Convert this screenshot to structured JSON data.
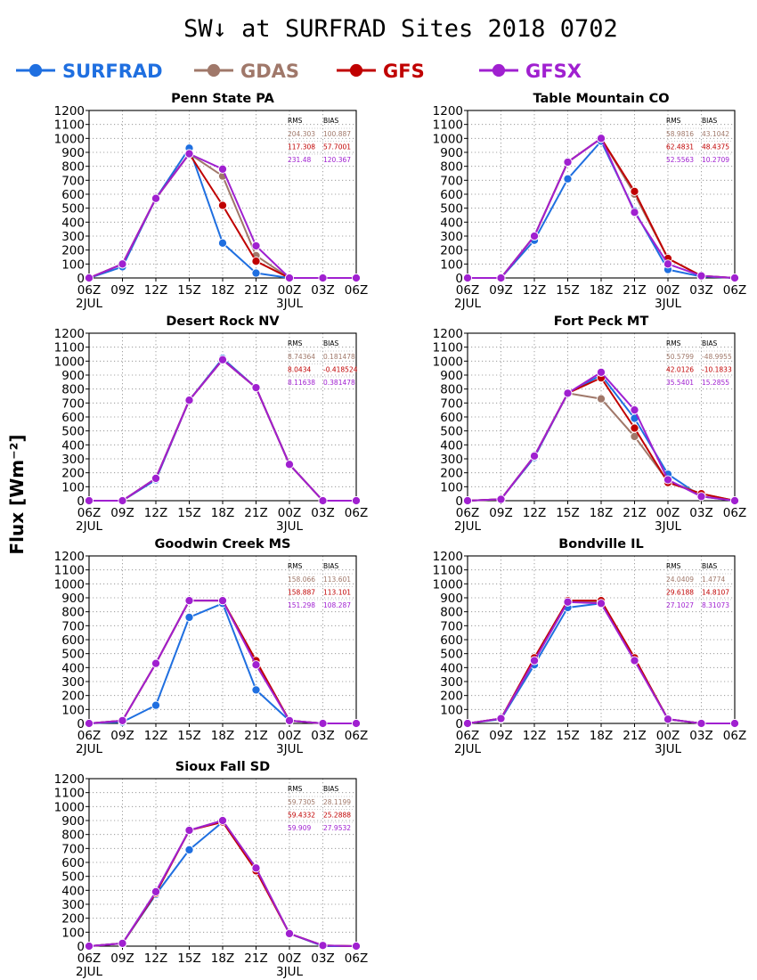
{
  "figure": {
    "title": "SW↓ at SURFRAD Sites    2018 0702",
    "ylabel": "Flux [Wm⁻²]",
    "legend": [
      {
        "name": "SURFRAD",
        "color": "#1f6fe0"
      },
      {
        "name": "GDAS",
        "color": "#a0786a"
      },
      {
        "name": "GFS",
        "color": "#c00000"
      },
      {
        "name": "GFSX",
        "color": "#a020d0"
      }
    ]
  },
  "chart_data": [
    {
      "type": "line",
      "title": "Penn State PA",
      "x": [
        "06Z",
        "09Z",
        "12Z",
        "15Z",
        "18Z",
        "21Z",
        "00Z",
        "03Z",
        "06Z"
      ],
      "date_labels": {
        "0": "2JUL",
        "6": "3JUL"
      },
      "ylim": [
        0,
        1200
      ],
      "yticks": [
        0,
        100,
        200,
        300,
        400,
        500,
        600,
        700,
        800,
        900,
        1000,
        1100,
        1200
      ],
      "grid": true,
      "stats_header": [
        "RMS",
        "BIAS"
      ],
      "stats": [
        [
          "204.303",
          "100.887"
        ],
        [
          "117.308",
          "57.7001"
        ],
        [
          "231.48",
          "120.367"
        ]
      ],
      "series": [
        {
          "name": "SURFRAD",
          "values": [
            0,
            80,
            570,
            930,
            250,
            35,
            0,
            null,
            null
          ]
        },
        {
          "name": "GDAS",
          "values": [
            0,
            100,
            570,
            890,
            730,
            160,
            0,
            0,
            0
          ]
        },
        {
          "name": "GFS",
          "values": [
            0,
            100,
            570,
            890,
            520,
            120,
            0,
            0,
            0
          ]
        },
        {
          "name": "GFSX",
          "values": [
            0,
            100,
            570,
            890,
            780,
            230,
            0,
            0,
            0
          ]
        }
      ]
    },
    {
      "type": "line",
      "title": "Table Mountain CO",
      "x": [
        "06Z",
        "09Z",
        "12Z",
        "15Z",
        "18Z",
        "21Z",
        "00Z",
        "03Z",
        "06Z"
      ],
      "date_labels": {
        "0": "2JUL",
        "6": "3JUL"
      },
      "ylim": [
        0,
        1200
      ],
      "yticks": [
        0,
        100,
        200,
        300,
        400,
        500,
        600,
        700,
        800,
        900,
        1000,
        1100,
        1200
      ],
      "grid": true,
      "stats_header": [
        "RMS",
        "BIAS"
      ],
      "stats": [
        [
          "58.9816",
          "43.1042"
        ],
        [
          "62.4831",
          "48.4375"
        ],
        [
          "52.5563",
          "10.2709"
        ]
      ],
      "series": [
        {
          "name": "SURFRAD",
          "values": [
            0,
            0,
            270,
            710,
            980,
            480,
            60,
            10,
            0
          ]
        },
        {
          "name": "GDAS",
          "values": [
            0,
            0,
            300,
            830,
            1000,
            600,
            140,
            15,
            0
          ]
        },
        {
          "name": "GFS",
          "values": [
            0,
            0,
            300,
            830,
            1000,
            620,
            140,
            15,
            0
          ]
        },
        {
          "name": "GFSX",
          "values": [
            0,
            0,
            300,
            830,
            1000,
            470,
            100,
            15,
            0
          ]
        }
      ]
    },
    {
      "type": "line",
      "title": "Desert Rock NV",
      "x": [
        "06Z",
        "09Z",
        "12Z",
        "15Z",
        "18Z",
        "21Z",
        "00Z",
        "03Z",
        "06Z"
      ],
      "date_labels": {
        "0": "2JUL",
        "6": "3JUL"
      },
      "ylim": [
        0,
        1200
      ],
      "yticks": [
        0,
        100,
        200,
        300,
        400,
        500,
        600,
        700,
        800,
        900,
        1000,
        1100,
        1200
      ],
      "grid": true,
      "stats_header": [
        "RMS",
        "BIAS"
      ],
      "stats": [
        [
          "8.74364",
          "0.181478"
        ],
        [
          "8.0434",
          "-0.418524"
        ],
        [
          "8.11638",
          "0.381478"
        ]
      ],
      "series": [
        {
          "name": "SURFRAD",
          "values": [
            0,
            0,
            150,
            720,
            1020,
            810,
            260,
            0,
            null
          ]
        },
        {
          "name": "GDAS",
          "values": [
            0,
            0,
            160,
            720,
            1010,
            810,
            260,
            0,
            0
          ]
        },
        {
          "name": "GFS",
          "values": [
            0,
            0,
            160,
            720,
            1010,
            810,
            260,
            0,
            0
          ]
        },
        {
          "name": "GFSX",
          "values": [
            0,
            0,
            160,
            720,
            1010,
            810,
            260,
            0,
            0
          ]
        }
      ]
    },
    {
      "type": "line",
      "title": "Fort Peck MT",
      "x": [
        "06Z",
        "09Z",
        "12Z",
        "15Z",
        "18Z",
        "21Z",
        "00Z",
        "03Z",
        "06Z"
      ],
      "date_labels": {
        "0": "2JUL",
        "6": "3JUL"
      },
      "ylim": [
        0,
        1200
      ],
      "yticks": [
        0,
        100,
        200,
        300,
        400,
        500,
        600,
        700,
        800,
        900,
        1000,
        1100,
        1200
      ],
      "grid": true,
      "stats_header": [
        "RMS",
        "BIAS"
      ],
      "stats": [
        [
          "50.5799",
          "-48.9955"
        ],
        [
          "42.0126",
          "-10.1833"
        ],
        [
          "35.5401",
          "15.2855"
        ]
      ],
      "series": [
        {
          "name": "SURFRAD",
          "values": [
            0,
            10,
            310,
            770,
            900,
            590,
            190,
            30,
            0
          ]
        },
        {
          "name": "GDAS",
          "values": [
            0,
            10,
            320,
            770,
            730,
            460,
            140,
            50,
            0
          ]
        },
        {
          "name": "GFS",
          "values": [
            0,
            10,
            320,
            770,
            880,
            520,
            130,
            50,
            0
          ]
        },
        {
          "name": "GFSX",
          "values": [
            0,
            10,
            320,
            770,
            920,
            650,
            150,
            30,
            0
          ]
        }
      ]
    },
    {
      "type": "line",
      "title": "Goodwin Creek MS",
      "x": [
        "06Z",
        "09Z",
        "12Z",
        "15Z",
        "18Z",
        "21Z",
        "00Z",
        "03Z",
        "06Z"
      ],
      "date_labels": {
        "0": "2JUL",
        "6": "3JUL"
      },
      "ylim": [
        0,
        1200
      ],
      "yticks": [
        0,
        100,
        200,
        300,
        400,
        500,
        600,
        700,
        800,
        900,
        1000,
        1100,
        1200
      ],
      "grid": true,
      "stats_header": [
        "RMS",
        "BIAS"
      ],
      "stats": [
        [
          "158.066",
          "113.601"
        ],
        [
          "158.887",
          "113.101"
        ],
        [
          "151.298",
          "108.287"
        ]
      ],
      "series": [
        {
          "name": "SURFRAD",
          "values": [
            0,
            10,
            130,
            760,
            860,
            240,
            20,
            0,
            null
          ]
        },
        {
          "name": "GDAS",
          "values": [
            0,
            20,
            430,
            880,
            880,
            440,
            20,
            0,
            0
          ]
        },
        {
          "name": "GFS",
          "values": [
            0,
            20,
            430,
            880,
            880,
            450,
            20,
            0,
            0
          ]
        },
        {
          "name": "GFSX",
          "values": [
            0,
            20,
            430,
            880,
            880,
            420,
            20,
            0,
            0
          ]
        }
      ]
    },
    {
      "type": "line",
      "title": "Bondville IL",
      "x": [
        "06Z",
        "09Z",
        "12Z",
        "15Z",
        "18Z",
        "21Z",
        "00Z",
        "03Z",
        "06Z"
      ],
      "date_labels": {
        "0": "2JUL",
        "6": "3JUL"
      },
      "ylim": [
        0,
        1200
      ],
      "yticks": [
        0,
        100,
        200,
        300,
        400,
        500,
        600,
        700,
        800,
        900,
        1000,
        1100,
        1200
      ],
      "grid": true,
      "stats_header": [
        "RMS",
        "BIAS"
      ],
      "stats": [
        [
          "24.0409",
          "1.4774"
        ],
        [
          "29.6188",
          "14.8107"
        ],
        [
          "27.1027",
          "8.31073"
        ]
      ],
      "series": [
        {
          "name": "SURFRAD",
          "values": [
            0,
            30,
            420,
            830,
            860,
            460,
            30,
            0,
            0
          ]
        },
        {
          "name": "GDAS",
          "values": [
            0,
            35,
            450,
            870,
            870,
            470,
            30,
            0,
            0
          ]
        },
        {
          "name": "GFS",
          "values": [
            0,
            35,
            470,
            880,
            880,
            470,
            30,
            0,
            0
          ]
        },
        {
          "name": "GFSX",
          "values": [
            0,
            35,
            450,
            870,
            860,
            450,
            30,
            0,
            0
          ]
        }
      ]
    },
    {
      "type": "line",
      "title": "Sioux Fall SD",
      "x": [
        "06Z",
        "09Z",
        "12Z",
        "15Z",
        "18Z",
        "21Z",
        "00Z",
        "03Z",
        "06Z"
      ],
      "date_labels": {
        "0": "2JUL",
        "6": "3JUL"
      },
      "ylim": [
        0,
        1200
      ],
      "yticks": [
        0,
        100,
        200,
        300,
        400,
        500,
        600,
        700,
        800,
        900,
        1000,
        1100,
        1200
      ],
      "grid": true,
      "stats_header": [
        "RMS",
        "BIAS"
      ],
      "stats": [
        [
          "59.7305",
          "28.1199"
        ],
        [
          "59.4332",
          "25.2888"
        ],
        [
          "59.909",
          "27.9532"
        ]
      ],
      "series": [
        {
          "name": "SURFRAD",
          "values": [
            0,
            20,
            370,
            690,
            890,
            550,
            90,
            0,
            0
          ]
        },
        {
          "name": "GDAS",
          "values": [
            0,
            20,
            380,
            830,
            900,
            560,
            90,
            5,
            0
          ]
        },
        {
          "name": "GFS",
          "values": [
            0,
            20,
            380,
            830,
            890,
            540,
            90,
            5,
            0
          ]
        },
        {
          "name": "GFSX",
          "values": [
            0,
            20,
            390,
            830,
            900,
            560,
            90,
            5,
            0
          ]
        }
      ]
    }
  ]
}
